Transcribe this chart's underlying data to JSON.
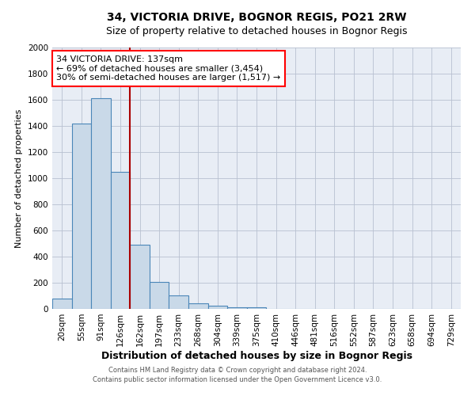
{
  "title": "34, VICTORIA DRIVE, BOGNOR REGIS, PO21 2RW",
  "subtitle": "Size of property relative to detached houses in Bognor Regis",
  "xlabel": "Distribution of detached houses by size in Bognor Regis",
  "ylabel": "Number of detached properties",
  "footnote1": "Contains HM Land Registry data © Crown copyright and database right 2024.",
  "footnote2": "Contains public sector information licensed under the Open Government Licence v3.0.",
  "categories": [
    "20sqm",
    "55sqm",
    "91sqm",
    "126sqm",
    "162sqm",
    "197sqm",
    "233sqm",
    "268sqm",
    "304sqm",
    "339sqm",
    "375sqm",
    "410sqm",
    "446sqm",
    "481sqm",
    "516sqm",
    "552sqm",
    "587sqm",
    "623sqm",
    "658sqm",
    "694sqm",
    "729sqm"
  ],
  "values": [
    80,
    1420,
    1610,
    1050,
    490,
    205,
    105,
    45,
    25,
    15,
    10,
    0,
    0,
    0,
    0,
    0,
    0,
    0,
    0,
    0,
    0
  ],
  "bar_color": "#c9d9e8",
  "bar_edge_color": "#4a86b8",
  "red_line_x": 3.5,
  "annotation_text": "34 VICTORIA DRIVE: 137sqm\n← 69% of detached houses are smaller (3,454)\n30% of semi-detached houses are larger (1,517) →",
  "annotation_box_color": "white",
  "annotation_box_edge_color": "red",
  "red_line_color": "#aa0000",
  "ylim": [
    0,
    2000
  ],
  "yticks": [
    0,
    200,
    400,
    600,
    800,
    1000,
    1200,
    1400,
    1600,
    1800,
    2000
  ],
  "background_color": "#e8edf5",
  "grid_color": "#b8c0d0",
  "title_fontsize": 10,
  "subtitle_fontsize": 9,
  "xlabel_fontsize": 9,
  "ylabel_fontsize": 8,
  "tick_fontsize": 7.5,
  "annotation_fontsize": 8,
  "footnote_fontsize": 6
}
